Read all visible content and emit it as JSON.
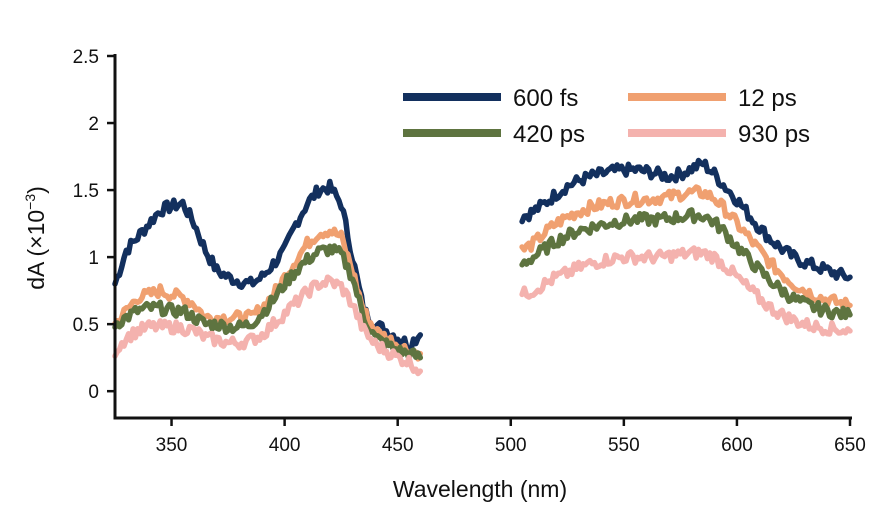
{
  "chart_data": {
    "type": "line",
    "xlabel": "Wavelength (nm)",
    "ylabel_prefix": "dA (×10",
    "ylabel_exp": "−3",
    "ylabel_suffix": ")",
    "xlim": [
      325,
      650
    ],
    "ylim": [
      -0.2,
      2.5
    ],
    "xticks": [
      350,
      400,
      450,
      500,
      550,
      600,
      650
    ],
    "yticks": [
      0,
      0.5,
      1,
      1.5,
      2,
      2.5
    ],
    "ytick_labels": [
      "0",
      "0.5",
      "1",
      "1.5",
      "2",
      "2.5"
    ],
    "legend_placement": "top-right, two columns",
    "series": [
      {
        "name": "600 fs",
        "color": "#13305e",
        "segments": [
          {
            "x": [
              325,
              330,
              335,
              340,
              345,
              350,
              355,
              360,
              365,
              370,
              375,
              380,
              385,
              390,
              395,
              400,
              405,
              410,
              415,
              420,
              425,
              430,
              435,
              440,
              445,
              450,
              455,
              460
            ],
            "y": [
              0.8,
              1.05,
              1.15,
              1.25,
              1.35,
              1.38,
              1.4,
              1.25,
              1.05,
              0.9,
              0.85,
              0.82,
              0.8,
              0.85,
              0.95,
              1.05,
              1.25,
              1.4,
              1.5,
              1.52,
              1.4,
              1.0,
              0.6,
              0.5,
              0.45,
              0.4,
              0.35,
              0.42
            ]
          },
          {
            "x": [
              505,
              510,
              515,
              520,
              525,
              530,
              535,
              540,
              545,
              550,
              555,
              560,
              565,
              570,
              575,
              580,
              585,
              590,
              595,
              600,
              605,
              610,
              615,
              620,
              625,
              630,
              635,
              640,
              645,
              650
            ],
            "y": [
              1.3,
              1.34,
              1.4,
              1.47,
              1.53,
              1.57,
              1.6,
              1.62,
              1.64,
              1.65,
              1.65,
              1.64,
              1.62,
              1.6,
              1.62,
              1.66,
              1.7,
              1.62,
              1.52,
              1.43,
              1.32,
              1.22,
              1.13,
              1.06,
              1.0,
              0.96,
              0.93,
              0.9,
              0.87,
              0.85
            ]
          }
        ]
      },
      {
        "name": "12 ps",
        "color": "#f0a070",
        "segments": [
          {
            "x": [
              325,
              330,
              335,
              340,
              345,
              350,
              355,
              360,
              365,
              370,
              375,
              380,
              385,
              390,
              395,
              400,
              405,
              410,
              415,
              420,
              425,
              430,
              435,
              440,
              445,
              450,
              455,
              460
            ],
            "y": [
              0.5,
              0.6,
              0.7,
              0.72,
              0.75,
              0.72,
              0.7,
              0.65,
              0.55,
              0.55,
              0.55,
              0.55,
              0.55,
              0.62,
              0.72,
              0.85,
              0.98,
              1.1,
              1.18,
              1.2,
              1.15,
              0.9,
              0.6,
              0.45,
              0.4,
              0.35,
              0.3,
              0.28
            ]
          },
          {
            "x": [
              505,
              510,
              515,
              520,
              525,
              530,
              535,
              540,
              545,
              550,
              555,
              560,
              565,
              570,
              575,
              580,
              585,
              590,
              595,
              600,
              605,
              610,
              615,
              620,
              625,
              630,
              635,
              640,
              645,
              650
            ],
            "y": [
              1.05,
              1.1,
              1.18,
              1.25,
              1.3,
              1.34,
              1.37,
              1.39,
              1.41,
              1.42,
              1.43,
              1.43,
              1.44,
              1.45,
              1.47,
              1.48,
              1.48,
              1.44,
              1.35,
              1.25,
              1.15,
              1.05,
              0.95,
              0.87,
              0.8,
              0.75,
              0.71,
              0.68,
              0.66,
              0.64
            ]
          }
        ]
      },
      {
        "name": "420 ps",
        "color": "#5e7440",
        "segments": [
          {
            "x": [
              325,
              330,
              335,
              340,
              345,
              350,
              355,
              360,
              365,
              370,
              375,
              380,
              385,
              390,
              395,
              400,
              405,
              410,
              415,
              420,
              425,
              430,
              435,
              440,
              445,
              450,
              455,
              460
            ],
            "y": [
              0.5,
              0.55,
              0.6,
              0.62,
              0.62,
              0.6,
              0.6,
              0.55,
              0.5,
              0.5,
              0.48,
              0.48,
              0.5,
              0.58,
              0.68,
              0.8,
              0.9,
              0.98,
              1.04,
              1.06,
              1.02,
              0.85,
              0.55,
              0.4,
              0.35,
              0.3,
              0.28,
              0.25
            ]
          },
          {
            "x": [
              505,
              510,
              515,
              520,
              525,
              530,
              535,
              540,
              545,
              550,
              555,
              560,
              565,
              570,
              575,
              580,
              585,
              590,
              595,
              600,
              605,
              610,
              615,
              620,
              625,
              630,
              635,
              640,
              645,
              650
            ],
            "y": [
              0.95,
              1.0,
              1.06,
              1.12,
              1.16,
              1.2,
              1.22,
              1.24,
              1.26,
              1.27,
              1.28,
              1.28,
              1.28,
              1.29,
              1.3,
              1.31,
              1.31,
              1.26,
              1.18,
              1.08,
              0.99,
              0.9,
              0.82,
              0.75,
              0.69,
              0.65,
              0.62,
              0.6,
              0.58,
              0.57
            ]
          }
        ]
      },
      {
        "name": "930 ps",
        "color": "#f4b2ae",
        "segments": [
          {
            "x": [
              325,
              330,
              335,
              340,
              345,
              350,
              355,
              360,
              365,
              370,
              375,
              380,
              385,
              390,
              395,
              400,
              405,
              410,
              415,
              420,
              425,
              430,
              435,
              440,
              445,
              450,
              455,
              460
            ],
            "y": [
              0.3,
              0.4,
              0.45,
              0.48,
              0.48,
              0.48,
              0.47,
              0.45,
              0.4,
              0.38,
              0.36,
              0.36,
              0.38,
              0.42,
              0.5,
              0.58,
              0.66,
              0.74,
              0.8,
              0.82,
              0.78,
              0.65,
              0.45,
              0.35,
              0.3,
              0.25,
              0.22,
              0.15
            ]
          },
          {
            "x": [
              505,
              510,
              515,
              520,
              525,
              530,
              535,
              540,
              545,
              550,
              555,
              560,
              565,
              570,
              575,
              580,
              585,
              590,
              595,
              600,
              605,
              610,
              615,
              620,
              625,
              630,
              635,
              640,
              645,
              650
            ],
            "y": [
              0.72,
              0.75,
              0.8,
              0.85,
              0.88,
              0.92,
              0.95,
              0.97,
              0.99,
              1.0,
              1.0,
              1.0,
              1.0,
              1.01,
              1.02,
              1.03,
              1.03,
              1.0,
              0.93,
              0.85,
              0.77,
              0.69,
              0.62,
              0.57,
              0.53,
              0.5,
              0.48,
              0.47,
              0.46,
              0.45
            ]
          }
        ]
      }
    ]
  }
}
